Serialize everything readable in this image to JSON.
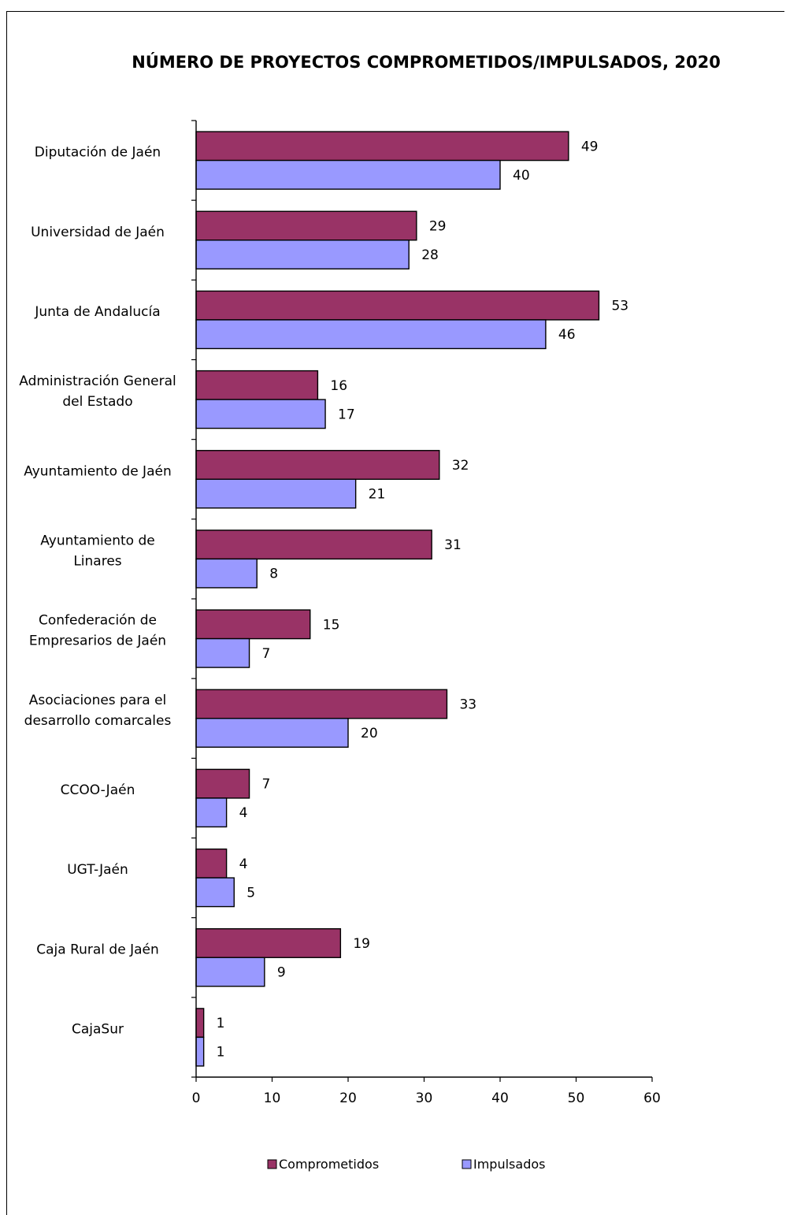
{
  "chart_data": {
    "type": "bar",
    "orientation": "horizontal",
    "title": "NÚMERO DE PROYECTOS COMPROMETIDOS/IMPULSADOS, 2020",
    "categories": [
      [
        "Diputación de Jaén"
      ],
      [
        "Universidad de Jaén"
      ],
      [
        "Junta de Andalucía"
      ],
      [
        "Administración General",
        "del Estado"
      ],
      [
        "Ayuntamiento de Jaén"
      ],
      [
        "Ayuntamiento de",
        "Linares"
      ],
      [
        "Confederación de",
        "Empresarios de Jaén"
      ],
      [
        "Asociaciones para el",
        "desarrollo comarcales"
      ],
      [
        "CCOO-Jaén"
      ],
      [
        "UGT-Jaén"
      ],
      [
        "Caja Rural de Jaén"
      ],
      [
        "CajaSur"
      ]
    ],
    "series": [
      {
        "name": "Comprometidos",
        "color": "#993366",
        "values": [
          49,
          29,
          53,
          16,
          32,
          31,
          15,
          33,
          7,
          4,
          19,
          1
        ]
      },
      {
        "name": "Impulsados",
        "color": "#9999ff",
        "values": [
          40,
          28,
          46,
          17,
          21,
          8,
          7,
          20,
          4,
          5,
          9,
          1
        ]
      }
    ],
    "xlim": [
      0,
      60
    ],
    "xticks": [
      0,
      10,
      20,
      30,
      40,
      50,
      60
    ],
    "grid": false,
    "legend_position": "bottom"
  }
}
